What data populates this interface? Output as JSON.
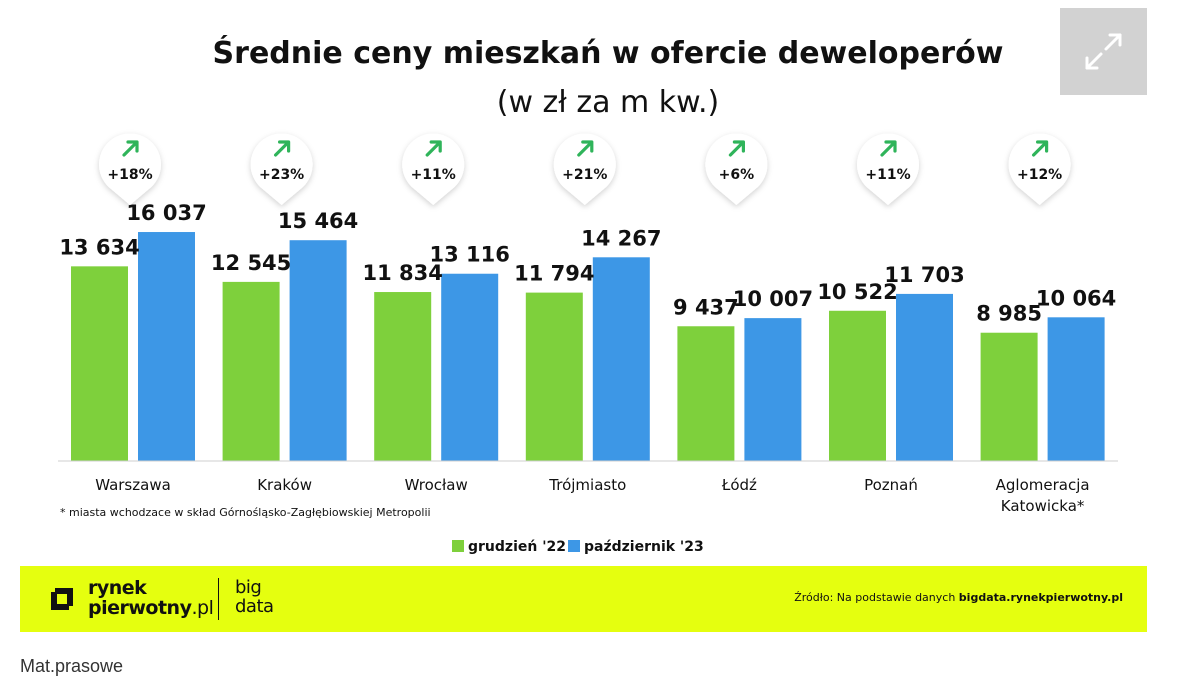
{
  "chart_data": {
    "type": "bar",
    "title": "Średnie ceny mieszkań w ofercie deweloperów",
    "subtitle": "(w zł za m kw.)",
    "categories": [
      "Warszawa",
      "Kraków",
      "Wrocław",
      "Trójmiasto",
      "Łódź",
      "Poznań",
      "Aglomeracja Katowicka*"
    ],
    "series": [
      {
        "name": "grudzień '22",
        "color": "#7ed03c",
        "values": [
          13634,
          12545,
          11834,
          11794,
          9437,
          10522,
          8985
        ],
        "labels": [
          "13 634",
          "12 545",
          "11 834",
          "11 794",
          "9 437",
          "10 522",
          "8 985"
        ]
      },
      {
        "name": "październik '23",
        "color": "#3d97e6",
        "values": [
          16037,
          15464,
          13116,
          14267,
          10007,
          11703,
          10064
        ],
        "labels": [
          "16 037",
          "15 464",
          "13 116",
          "14 267",
          "10 007",
          "11 703",
          "10 064"
        ]
      }
    ],
    "changes": [
      "+18%",
      "+23%",
      "+11%",
      "+21%",
      "+6%",
      "+11%",
      "+12%"
    ],
    "change_arrow_color": "#2fb45a",
    "ylim": [
      0,
      18000
    ],
    "grid": false,
    "legend_position": "bottom-center",
    "footnote": "* miasta wchodzace w skład Górnośląsko-Zagłębiowskiej Metropolii"
  },
  "footer": {
    "logo_line1": "rynek",
    "logo_line2_bold": "pierwotny",
    "logo_line2_light": ".pl",
    "logo_big_line1": "big",
    "logo_big_line2": "data",
    "source_prefix": "Źródło: Na podstawie danych ",
    "source_bold": "bigdata.rynekpierwotny.pl",
    "background": "#e5ff0f"
  },
  "caption": "Mat.prasowe",
  "expand_button": {
    "icon": "expand-icon"
  }
}
